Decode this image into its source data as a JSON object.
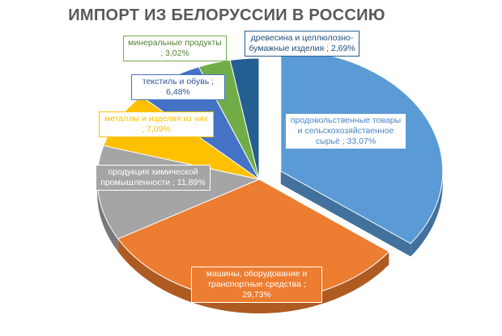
{
  "chart_data": {
    "type": "pie",
    "title": "ИМПОРТ ИЗ БЕЛОРУССИИ В РОССИЮ",
    "slices": [
      {
        "label": "продовольственные товары и сельскохозяйственное сырьё",
        "value": 33.07,
        "display": "продовольственные товары и сельскохозяйственное сырьё ; 33,07%",
        "color": "#5b9bd5",
        "dark": "#41719c",
        "exploded": true
      },
      {
        "label": "машины, оборудование и транспортные средства",
        "value": 29.73,
        "display": "машины, оборудование и транспортные средства ; 29,73%",
        "color": "#ed7d31",
        "dark": "#ae5a21",
        "exploded": false
      },
      {
        "label": "продукция химической промышленности",
        "value": 11.89,
        "display": "продукция химической промышленности ; 11,89%",
        "color": "#a5a5a5",
        "dark": "#787878",
        "exploded": false
      },
      {
        "label": "металлы и изделия из них",
        "value": 7.09,
        "display": "металлы и изделия из них ; 7,09%",
        "color": "#ffc000",
        "dark": "#bc8c00",
        "exploded": false
      },
      {
        "label": "текстиль и обувь",
        "value": 6.48,
        "display": "текстиль и обувь ; 6,48%",
        "color": "#4472c4",
        "dark": "#2f528f",
        "exploded": false
      },
      {
        "label": "минеральные продукты",
        "value": 3.02,
        "display": "минеральные продукты ; 3,02%",
        "color": "#70ad47",
        "dark": "#507e32",
        "exploded": false
      },
      {
        "label": "древесина и целлюлозно-бумажные изделия",
        "value": 2.69,
        "display": "древесина и целлюлозно-бумажные изделия ; 2,69%",
        "color": "#255e91",
        "dark": "#1a4268",
        "exploded": false
      }
    ]
  }
}
